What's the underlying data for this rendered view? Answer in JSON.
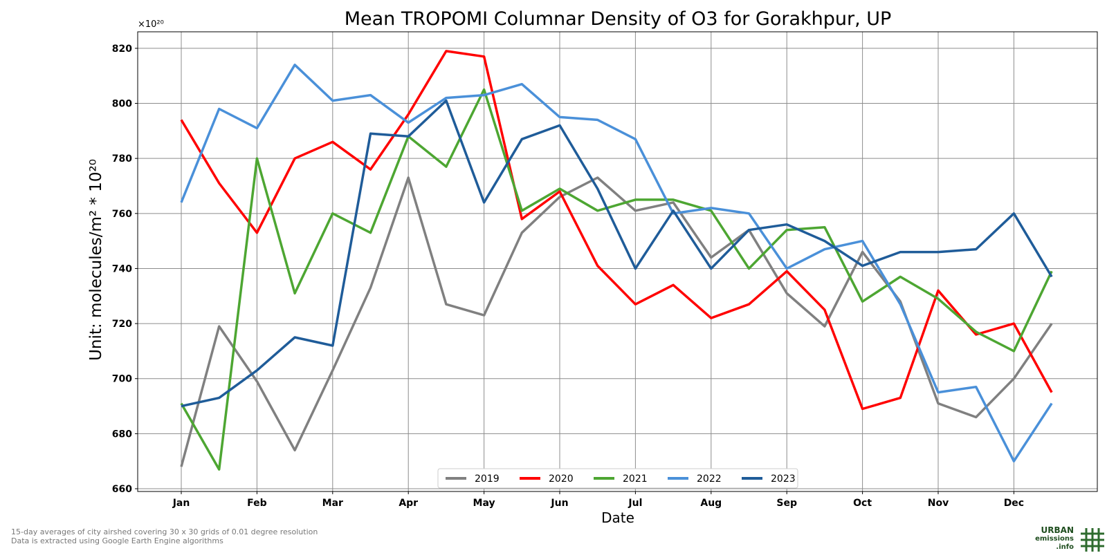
{
  "chart_data": {
    "type": "line",
    "title": "Mean TROPOMI Columnar Density of O3 for Gorakhpur, UP",
    "xlabel": "Date",
    "ylabel": "Unit: molecules/m² * 10²⁰",
    "y_multiplier_label": "×10²⁰",
    "ylim": [
      659,
      826
    ],
    "yticks": [
      660,
      680,
      700,
      720,
      740,
      760,
      780,
      800,
      820
    ],
    "x_periods": 24,
    "xticks": [
      "Jan",
      "Feb",
      "Mar",
      "Apr",
      "May",
      "Jun",
      "Jul",
      "Aug",
      "Sep",
      "Oct",
      "Nov",
      "Dec"
    ],
    "grid": true,
    "legend_position": "bottom-center",
    "series": [
      {
        "name": "2019",
        "color": "#808080",
        "values": [
          668,
          719,
          699,
          674,
          703,
          733,
          773,
          727,
          723,
          753,
          766,
          773,
          761,
          764,
          744,
          754,
          731,
          719,
          746,
          728,
          691,
          686,
          700,
          720
        ]
      },
      {
        "name": "2020",
        "color": "#ff0000",
        "values": [
          794,
          771,
          753,
          780,
          786,
          776,
          796,
          819,
          817,
          758,
          768,
          741,
          727,
          734,
          722,
          727,
          739,
          725,
          689,
          693,
          732,
          716,
          720,
          695
        ]
      },
      {
        "name": "2021",
        "color": "#4da632",
        "values": [
          691,
          667,
          780,
          731,
          760,
          753,
          788,
          777,
          805,
          761,
          769,
          761,
          765,
          765,
          761,
          740,
          754,
          755,
          728,
          737,
          729,
          717,
          710,
          739
        ]
      },
      {
        "name": "2022",
        "color": "#4a90d9",
        "values": [
          764,
          798,
          791,
          814,
          801,
          803,
          793,
          802,
          803,
          807,
          795,
          794,
          787,
          760,
          762,
          760,
          740,
          747,
          750,
          727,
          695,
          697,
          670,
          691
        ]
      },
      {
        "name": "2023",
        "color": "#1f5c99",
        "values": [
          690,
          693,
          703,
          715,
          712,
          789,
          788,
          801,
          764,
          787,
          792,
          769,
          740,
          761,
          740,
          754,
          756,
          750,
          741,
          746,
          746,
          747,
          760,
          737
        ]
      }
    ]
  },
  "footnote": {
    "line1": "15-day averages of city airshed covering 30 x 30 grids of 0.01 degree resolution",
    "line2": "Data is extracted using Google Earth Engine algorithms"
  },
  "logo": {
    "line1": "URBAN",
    "line2": "emissions",
    "line3": ".info",
    "color": "#1f4e1f"
  }
}
